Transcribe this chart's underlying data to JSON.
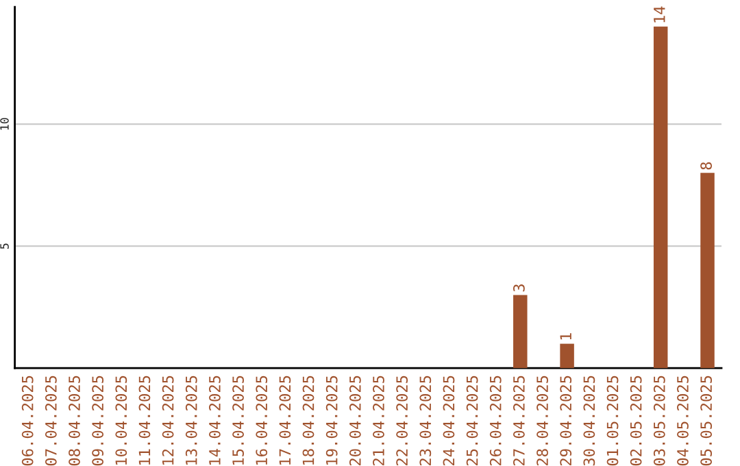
{
  "chart_data": {
    "type": "bar",
    "categories": [
      "06.04.2025",
      "07.04.2025",
      "08.04.2025",
      "09.04.2025",
      "10.04.2025",
      "11.04.2025",
      "12.04.2025",
      "13.04.2025",
      "14.04.2025",
      "15.04.2025",
      "16.04.2025",
      "17.04.2025",
      "18.04.2025",
      "19.04.2025",
      "20.04.2025",
      "21.04.2025",
      "22.04.2025",
      "23.04.2025",
      "24.04.2025",
      "25.04.2025",
      "26.04.2025",
      "27.04.2025",
      "28.04.2025",
      "29.04.2025",
      "30.04.2025",
      "01.05.2025",
      "02.05.2025",
      "03.05.2025",
      "04.05.2025",
      "05.05.2025"
    ],
    "values": [
      0,
      0,
      0,
      0,
      0,
      0,
      0,
      0,
      0,
      0,
      0,
      0,
      0,
      0,
      0,
      0,
      0,
      0,
      0,
      0,
      0,
      3,
      0,
      1,
      0,
      0,
      0,
      14,
      0,
      8
    ],
    "value_labels": [
      null,
      null,
      null,
      null,
      null,
      null,
      null,
      null,
      null,
      null,
      null,
      null,
      null,
      null,
      null,
      null,
      null,
      null,
      null,
      null,
      null,
      "3",
      null,
      "1",
      null,
      null,
      null,
      "14",
      null,
      "8"
    ],
    "color": "#a0522d",
    "ylim": [
      0,
      14.8
    ],
    "yticks": [
      5,
      10
    ],
    "grid": "y"
  }
}
